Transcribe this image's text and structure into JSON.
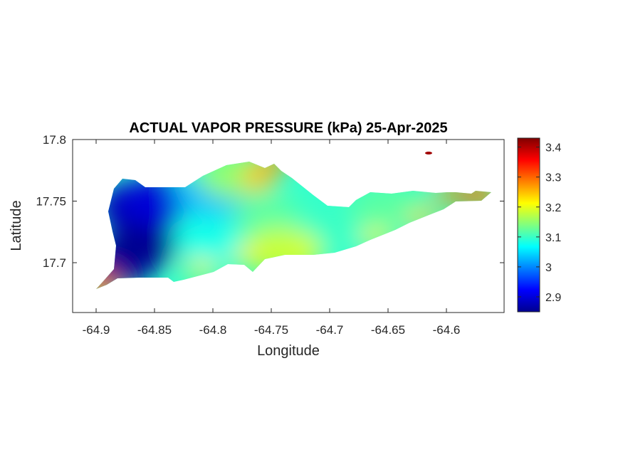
{
  "title": "ACTUAL VAPOR PRESSURE (kPa) 25-Apr-2025",
  "xlabel": "Longitude",
  "ylabel": "Latitude",
  "x_ticks": [
    "-64.9",
    "-64.85",
    "-64.8",
    "-64.75",
    "-64.7",
    "-64.65",
    "-64.6"
  ],
  "y_ticks": [
    "17.8",
    "17.75",
    "17.7"
  ],
  "colorbar_ticks": [
    "3.4",
    "3.3",
    "3.2",
    "3.1",
    "3",
    "2.9"
  ],
  "colormap": "jet",
  "chart_data": {
    "type": "heatmap",
    "title": "ACTUAL VAPOR PRESSURE (kPa) 25-Apr-2025",
    "xlabel": "Longitude",
    "ylabel": "Latitude",
    "xlim": [
      -64.92,
      -64.56
    ],
    "ylim": [
      17.66,
      17.8
    ],
    "clim": [
      2.85,
      3.43
    ],
    "colormap": "jet",
    "colorbar_ticks": [
      2.9,
      3.0,
      3.1,
      3.2,
      3.3,
      3.4
    ],
    "grid": false,
    "field_samples": [
      {
        "lon": -64.87,
        "lat": 17.745,
        "value": 2.88
      },
      {
        "lon": -64.86,
        "lat": 17.715,
        "value": 2.86
      },
      {
        "lon": -64.88,
        "lat": 17.7,
        "value": 2.86
      },
      {
        "lon": -64.85,
        "lat": 17.75,
        "value": 2.9
      },
      {
        "lon": -64.8,
        "lat": 17.755,
        "value": 3.03
      },
      {
        "lon": -64.8,
        "lat": 17.72,
        "value": 3.08
      },
      {
        "lon": -64.75,
        "lat": 17.735,
        "value": 3.12
      },
      {
        "lon": -64.7,
        "lat": 17.73,
        "value": 3.1
      },
      {
        "lon": -64.65,
        "lat": 17.745,
        "value": 3.12
      },
      {
        "lon": -64.74,
        "lat": 17.71,
        "value": 3.18
      },
      {
        "lon": -64.57,
        "lat": 17.755,
        "value": 3.28
      },
      {
        "lon": -64.78,
        "lat": 17.77,
        "value": 3.15
      },
      {
        "lon": -64.76,
        "lat": 17.77,
        "value": 3.25
      },
      {
        "lon": -64.62,
        "lat": 17.79,
        "value": 3.42
      },
      {
        "lon": -64.9,
        "lat": 17.68,
        "value": 3.27
      }
    ]
  }
}
